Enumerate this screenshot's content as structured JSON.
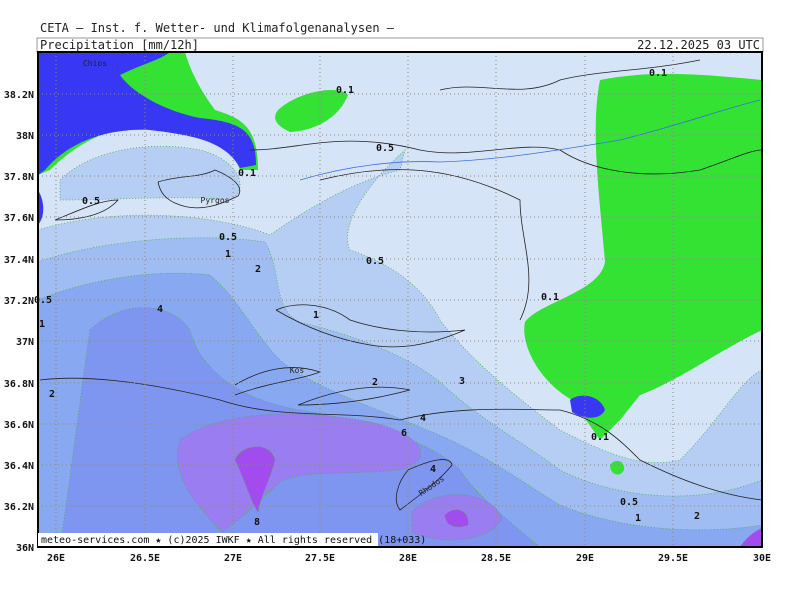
{
  "header": {
    "institute": "CETA — Inst. f. Wetter- und Klimafolgenanalysen —",
    "parameter": "Precipitation [mm/12h]",
    "valid": "22.12.2025 03 UTC"
  },
  "axes": {
    "x_labels": [
      "26E",
      "26.5E",
      "27E",
      "27.5E",
      "28E",
      "28.5E",
      "29E",
      "29.5E",
      "30E"
    ],
    "y_labels": [
      "36N",
      "36.2N",
      "36.4N",
      "36.6N",
      "36.8N",
      "37N",
      "37.2N",
      "37.4N",
      "37.6N",
      "37.8N",
      "38N",
      "38.2N"
    ]
  },
  "places": [
    "Chios",
    "Pyrgos",
    "Kos",
    "Rhodos"
  ],
  "contour_labels": [
    "0.1",
    "0.1",
    "0.5",
    "0.1",
    "0.5",
    "0.5",
    "1",
    "2",
    "0.5",
    "0.1",
    "0.5",
    "1",
    "4",
    "1",
    "2",
    "2",
    "3",
    "4",
    "6",
    "0.1",
    "4",
    "8",
    "0.5",
    "1",
    "2"
  ],
  "footer": "meteo-services.com ★ (c)2025 IWKF ★ All rights reserved (18+033)"
}
